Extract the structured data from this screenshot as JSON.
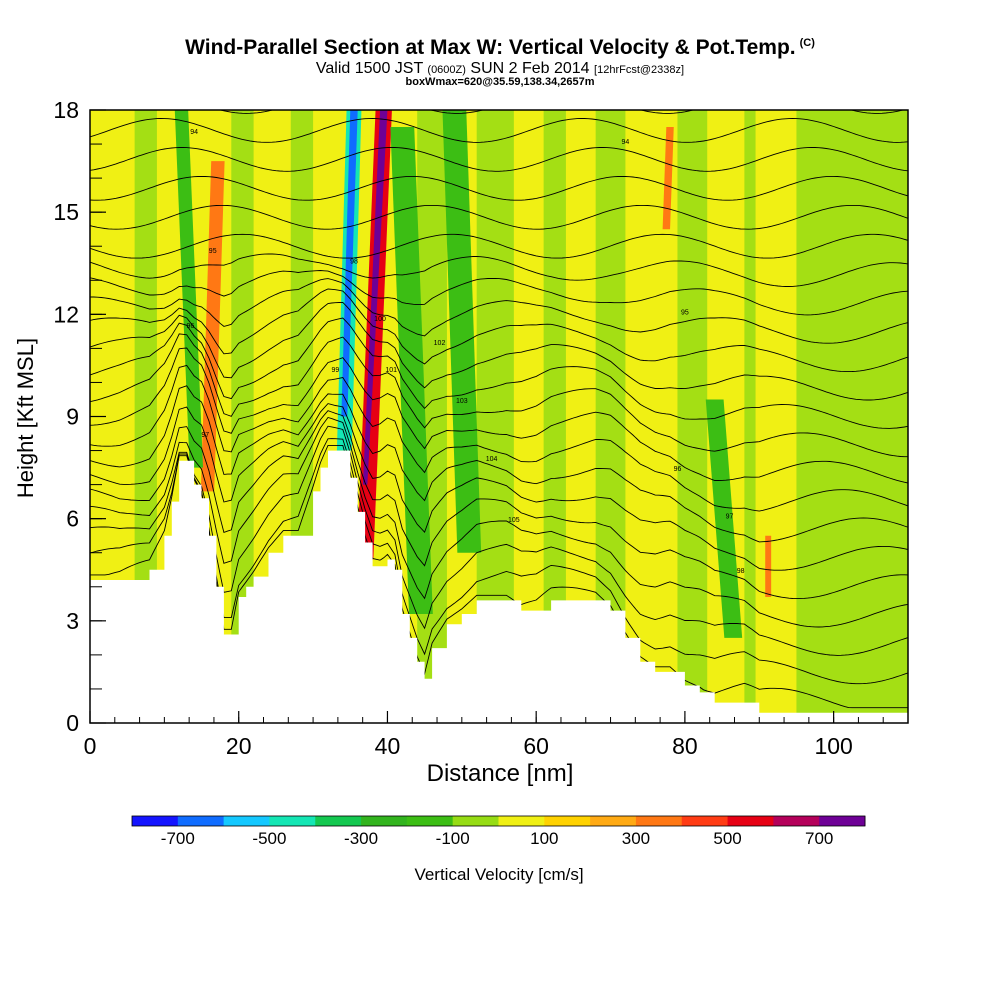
{
  "header": {
    "title": "Wind-Parallel Section at Max W: Vertical Velocity & Pot.Temp.",
    "title_mark": "(C)",
    "valid_prefix": "Valid 1500 JST",
    "valid_z": "(0600Z)",
    "valid_date": "SUN 2 Feb 2014",
    "valid_fcst": "[12hrFcst@2338z]",
    "box_line": "boxWmax=620@35.59,138.34,2657m"
  },
  "chart_data": {
    "type": "heatmap",
    "xlabel": "Distance [nm]",
    "ylabel": "Height [Kft MSL]",
    "xlim": [
      0,
      110
    ],
    "ylim": [
      0,
      18
    ],
    "x_ticks": [
      0,
      20,
      40,
      60,
      80,
      100
    ],
    "y_ticks": [
      0,
      3,
      6,
      9,
      12,
      15,
      18
    ],
    "colorbar": {
      "label": "Vertical Velocity [cm/s]",
      "bounds": [
        -800,
        -700,
        -600,
        -500,
        -400,
        -300,
        -200,
        -100,
        0,
        100,
        200,
        300,
        400,
        500,
        600,
        700,
        800
      ],
      "tick_labels": [
        "-700",
        "-500",
        "-300",
        "-100",
        "100",
        "300",
        "500",
        "700"
      ],
      "colors": [
        "#1414ff",
        "#0f6cff",
        "#14c8ff",
        "#14e6b4",
        "#14c850",
        "#32b41e",
        "#3cbe14",
        "#96dc14",
        "#f0f014",
        "#ffd200",
        "#ffaa14",
        "#ff7814",
        "#ff3c14",
        "#e60014",
        "#b4005a",
        "#6e0096"
      ]
    },
    "terrain_kft": {
      "x_nm": [
        0,
        4,
        8,
        10,
        11,
        12,
        13,
        14,
        15,
        16,
        17,
        18,
        19,
        20,
        21,
        22,
        24,
        26,
        28,
        30,
        31,
        32,
        34,
        35,
        36,
        37,
        38,
        39,
        40,
        41,
        42,
        43,
        44,
        45,
        46,
        48,
        50,
        52,
        54,
        56,
        58,
        60,
        62,
        64,
        66,
        68,
        70,
        72,
        74,
        76,
        78,
        80,
        82,
        84,
        86,
        88,
        90,
        92,
        94,
        96,
        98,
        100,
        102,
        104,
        106,
        108,
        110
      ],
      "height": [
        4.2,
        4.2,
        4.5,
        5.5,
        6.5,
        7.7,
        7.7,
        7.0,
        6.6,
        5.5,
        4.0,
        2.6,
        2.6,
        3.7,
        4.0,
        4.3,
        5.0,
        5.5,
        5.5,
        6.8,
        7.5,
        8.0,
        8.0,
        7.2,
        6.2,
        5.3,
        4.6,
        4.6,
        4.8,
        4.5,
        3.2,
        2.5,
        1.8,
        1.3,
        2.2,
        2.9,
        3.2,
        3.6,
        3.6,
        3.6,
        3.3,
        3.3,
        3.6,
        3.6,
        3.6,
        3.6,
        3.3,
        2.5,
        1.8,
        1.5,
        1.5,
        1.1,
        0.9,
        0.6,
        0.6,
        0.6,
        0.3,
        0.3,
        0.3,
        0.3,
        0.3,
        0.3,
        0.3,
        0.3,
        0.3,
        0.3,
        0.3
      ]
    },
    "w_streaks": [
      {
        "x_top": 35.5,
        "x_bottom": 34.2,
        "top": 18,
        "bottom": 8.0,
        "half_width": 1.0,
        "value": -500
      },
      {
        "x_top": 39.5,
        "x_bottom": 37.0,
        "top": 18,
        "bottom": 4.8,
        "half_width": 1.1,
        "value": 550
      },
      {
        "x_top": 17.2,
        "x_bottom": 15.8,
        "top": 16.5,
        "bottom": 6.8,
        "half_width": 0.9,
        "value": 300
      },
      {
        "x_top": 12.3,
        "x_bottom": 14.3,
        "top": 18,
        "bottom": 7.5,
        "half_width": 0.9,
        "value": -150
      },
      {
        "x_top": 42.0,
        "x_bottom": 44.5,
        "top": 17.5,
        "bottom": 3.2,
        "half_width": 1.6,
        "value": -150
      },
      {
        "x_top": 49.0,
        "x_bottom": 51.0,
        "top": 18,
        "bottom": 5.0,
        "half_width": 1.6,
        "value": -150
      },
      {
        "x_top": 84.0,
        "x_bottom": 86.5,
        "top": 9.5,
        "bottom": 2.5,
        "half_width": 1.2,
        "value": -150
      },
      {
        "x_top": 78.0,
        "x_bottom": 77.5,
        "top": 17.5,
        "bottom": 14.5,
        "half_width": 0.5,
        "value": 300
      },
      {
        "x_top": 91.2,
        "x_bottom": 91.2,
        "top": 5.5,
        "bottom": 3.7,
        "half_width": 0.4,
        "value": 300
      }
    ],
    "theta_contour_labels": [
      "94",
      "95",
      "96",
      "97",
      "98",
      "99",
      "100",
      "101",
      "102",
      "103",
      "104",
      "105"
    ]
  }
}
